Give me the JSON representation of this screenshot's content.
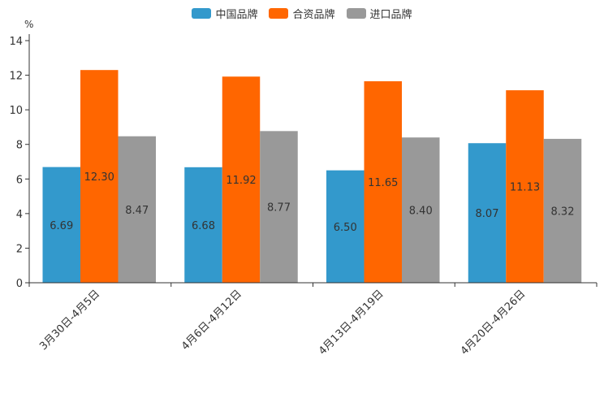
{
  "chart_data": {
    "type": "bar",
    "title": "",
    "ylabel": "%",
    "xlabel": "",
    "ylim": [
      0,
      14
    ],
    "yticks": [
      0,
      2,
      4,
      6,
      8,
      10,
      12,
      14
    ],
    "categories": [
      "3月30日-4月5日",
      "4月6日-4月12日",
      "4月13日-4月19日",
      "4月20日-4月26日"
    ],
    "series": [
      {
        "name": "中国品牌",
        "color": "#3399cc",
        "values": [
          6.69,
          6.68,
          6.5,
          8.07
        ],
        "labels": [
          "6.69",
          "6.68",
          "6.50",
          "8.07"
        ]
      },
      {
        "name": "合资品牌",
        "color": "#ff6600",
        "values": [
          12.3,
          11.92,
          11.65,
          11.13
        ],
        "labels": [
          "12.30",
          "11.92",
          "11.65",
          "11.13"
        ]
      },
      {
        "name": "进口品牌",
        "color": "#999999",
        "values": [
          8.47,
          8.77,
          8.4,
          8.32
        ],
        "labels": [
          "8.47",
          "8.77",
          "8.40",
          "8.32"
        ]
      }
    ],
    "legend_position": "top-center",
    "grid": false
  }
}
